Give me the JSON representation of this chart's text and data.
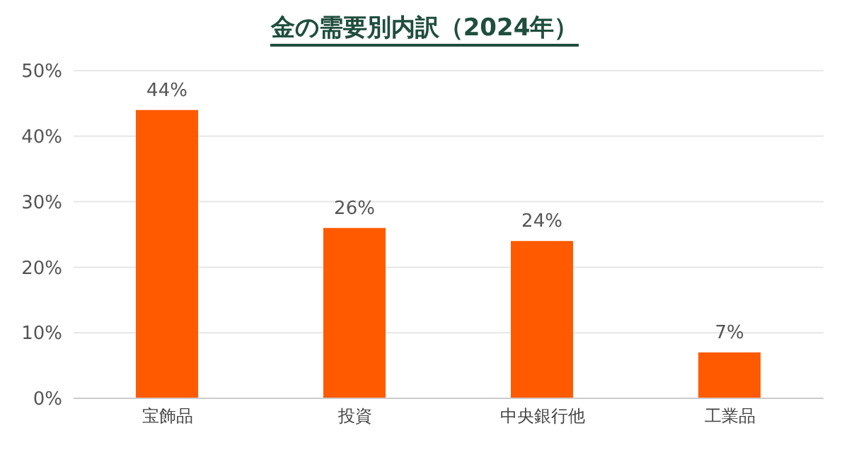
{
  "chart_data": {
    "type": "bar",
    "title": "金の需要別内訳（2024年）",
    "categories": [
      "宝飾品",
      "投資",
      "中央銀行他",
      "工業品"
    ],
    "values": [
      44,
      26,
      24,
      7
    ],
    "color": "#ff5a00",
    "ylim": [
      0,
      50
    ],
    "yticks": [
      {
        "value": 0,
        "label": "0%"
      },
      {
        "value": 10,
        "label": "10%"
      },
      {
        "value": 20,
        "label": "20%"
      },
      {
        "value": 30,
        "label": "30%"
      },
      {
        "value": 40,
        "label": "40%"
      },
      {
        "value": 50,
        "label": "50%"
      }
    ],
    "grid": "y",
    "data_labels": true,
    "value_labels": [
      "44%",
      "26%",
      "24%",
      "7%"
    ]
  }
}
